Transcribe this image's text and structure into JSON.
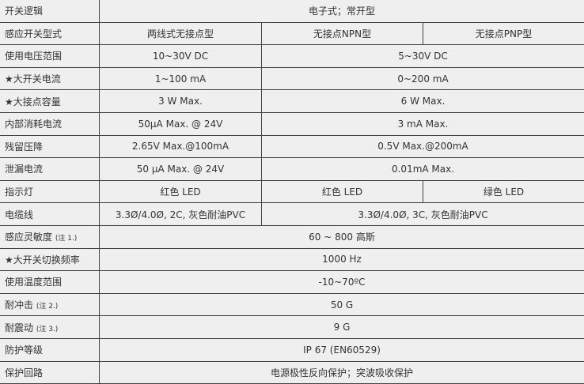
{
  "rows": [
    {
      "label": "开关逻辑",
      "cells": [
        "电子式；常开型"
      ]
    },
    {
      "label": "感应开关型式",
      "cells": [
        "两线式无接点型",
        "无接点NPN型",
        "无接点PNP型"
      ]
    },
    {
      "label": "使用电压范围",
      "cells": [
        "10~30V DC",
        "5~30V DC"
      ]
    },
    {
      "label": "★大开关电流",
      "cells": [
        "1~100 mA",
        "0~200 mA"
      ]
    },
    {
      "label": "★大接点容量",
      "cells": [
        "3 W Max.",
        "6 W Max."
      ]
    },
    {
      "label": "内部消耗电流",
      "cells": [
        "50μA Max. @ 24V",
        "3 mA Max."
      ]
    },
    {
      "label": "残留压降",
      "cells": [
        "2.65V Max.@100mA",
        "0.5V Max.@200mA"
      ]
    },
    {
      "label": "泄漏电流",
      "cells": [
        "50 μA Max. @ 24V",
        "0.01mA Max."
      ]
    },
    {
      "label": "指示灯",
      "cells": [
        "红色  LED",
        "红色  LED",
        "绿色  LED"
      ]
    },
    {
      "label": "电缆线",
      "cells": [
        "3.3Ø/4.0Ø, 2C, 灰色耐油PVC",
        "3.3Ø/4.0Ø, 3C, 灰色耐油PVC"
      ]
    },
    {
      "label": "感应灵敏度",
      "note": "(注 1.)",
      "cells": [
        "60 ~ 800 高斯"
      ]
    },
    {
      "label": "★大开关切换频率",
      "cells": [
        "1000 Hz"
      ]
    },
    {
      "label": "使用温度范围",
      "cells": [
        "-10~70ºC"
      ]
    },
    {
      "label": "耐冲击",
      "note": "(注 2.)",
      "cells": [
        "50 G"
      ]
    },
    {
      "label": "耐震动",
      "note": "(注 3.)",
      "cells": [
        "9 G"
      ]
    },
    {
      "label": "防护等级",
      "cells": [
        "IP 67 (EN60529)"
      ]
    },
    {
      "label": "保护回路",
      "cells": [
        "电源极性反向保护；突波吸收保护"
      ]
    }
  ]
}
